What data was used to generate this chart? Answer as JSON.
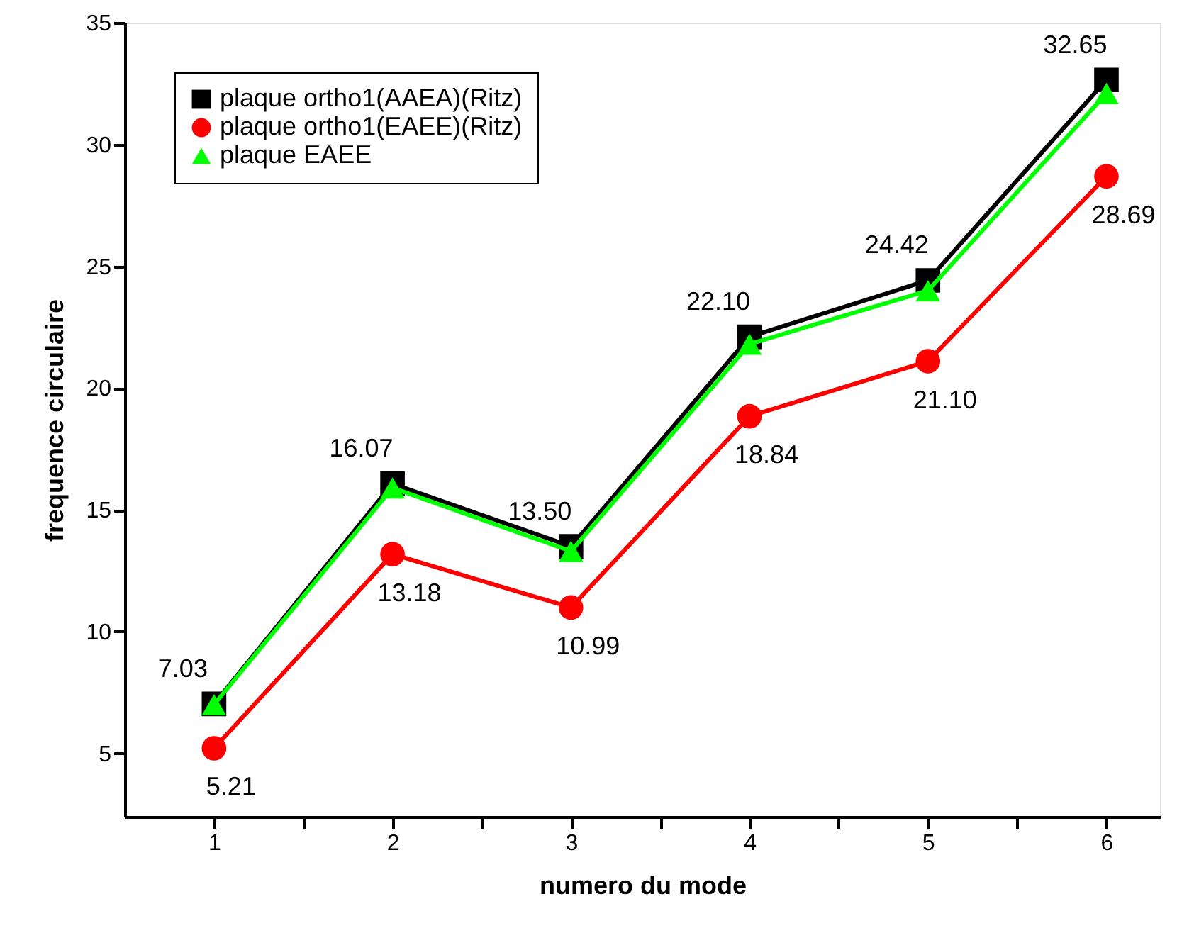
{
  "chart_data": {
    "type": "line",
    "xlabel": "numero du mode",
    "ylabel": "frequence circulaire",
    "x": [
      1,
      2,
      3,
      4,
      5,
      6
    ],
    "series": [
      {
        "name": "plaque ortho1(AAEA)(Ritz)",
        "color": "#000000",
        "marker": "square",
        "values": [
          7.03,
          16.07,
          13.5,
          22.1,
          24.42,
          32.65
        ],
        "value_labels": [
          "7.03",
          "16.07",
          "13.50",
          "22.10",
          "24.42",
          "32.65"
        ]
      },
      {
        "name": "plaque ortho1(EAEE)(Ritz)",
        "color": "#ff0000",
        "marker": "circle",
        "values": [
          5.21,
          13.18,
          10.99,
          18.84,
          21.1,
          28.69
        ],
        "value_labels": [
          "5.21",
          "13.18",
          "10.99",
          "18.84",
          "21.10",
          "28.69"
        ]
      },
      {
        "name": "plaque EAEE",
        "color": "#00ff00",
        "marker": "triangle",
        "values": [
          7.0,
          15.9,
          13.3,
          21.8,
          24.0,
          32.1
        ]
      }
    ],
    "xlim": [
      0.5,
      6.3
    ],
    "xticks": [
      1,
      {
        "value": 1.5,
        "label": null
      },
      2,
      {
        "value": 2.5,
        "label": null
      },
      3,
      {
        "value": 3.5,
        "label": null
      },
      4,
      {
        "value": 4.5,
        "label": null
      },
      5,
      {
        "value": 5.5,
        "label": null
      },
      6
    ],
    "ylim": [
      2.4,
      35
    ],
    "yticks": [
      5,
      10,
      15,
      20,
      25,
      30,
      35
    ],
    "grid": false,
    "legend": "top left",
    "line_style": "solid"
  }
}
